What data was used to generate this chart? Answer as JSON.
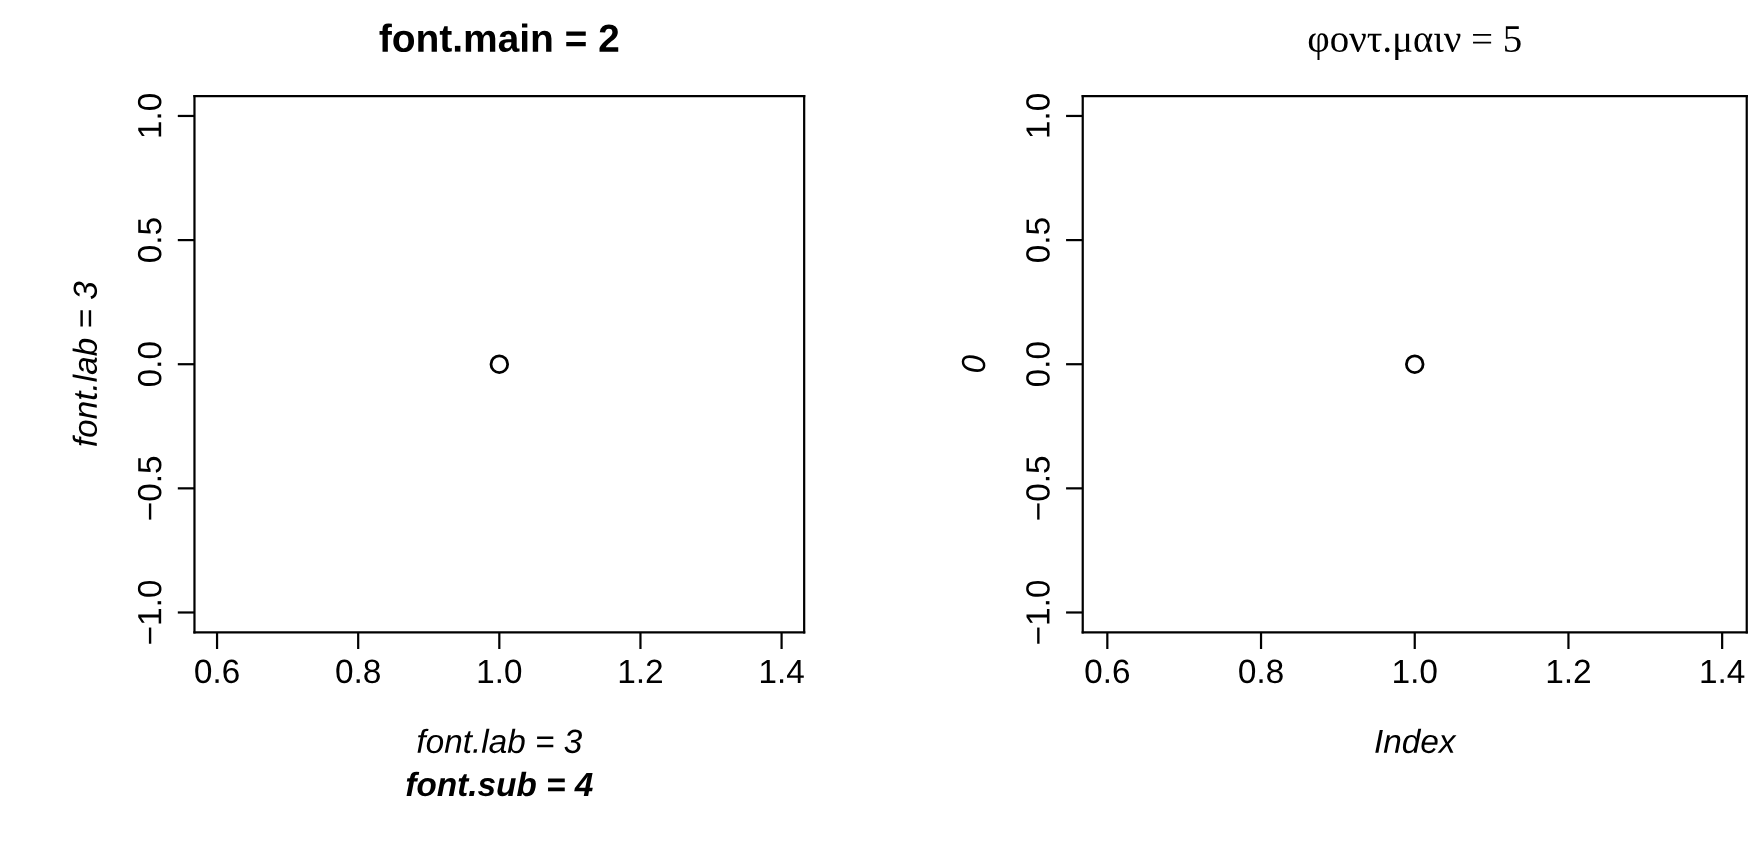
{
  "chart_data": [
    {
      "type": "scatter",
      "title": "font.main = 2",
      "xlabel": "font.lab = 3",
      "subtitle": "font.sub = 4",
      "ylabel": "font.lab = 3",
      "x": [
        1
      ],
      "series": [
        {
          "color": "#000000",
          "values": [
            0
          ]
        }
      ],
      "marker": "circle",
      "xlim": [
        0.568,
        1.432
      ],
      "ylim": [
        -1.08,
        1.08
      ],
      "xticks": [
        {
          "value": 0.6,
          "label": "0.6"
        },
        {
          "value": 0.8,
          "label": "0.8"
        },
        {
          "value": 1,
          "label": "1.0"
        },
        {
          "value": 1.2,
          "label": "1.2"
        },
        {
          "value": 1.4,
          "label": "1.4"
        }
      ],
      "yticks": [
        {
          "value": -1,
          "label": "−1.0"
        },
        {
          "value": -0.5,
          "label": "−0.5"
        },
        {
          "value": 0,
          "label": "0.0"
        },
        {
          "value": 0.5,
          "label": "0.5"
        },
        {
          "value": 1,
          "label": "1.0"
        }
      ],
      "grid": false,
      "legend": false
    },
    {
      "type": "scatter",
      "title": "φοντ.μαιν = 5",
      "xlabel": "Index",
      "ylabel": "0",
      "x": [
        1
      ],
      "series": [
        {
          "color": "#000000",
          "values": [
            0
          ]
        }
      ],
      "marker": "circle",
      "xlim": [
        0.568,
        1.432
      ],
      "ylim": [
        -1.08,
        1.08
      ],
      "xticks": [
        {
          "value": 0.6,
          "label": "0.6"
        },
        {
          "value": 0.8,
          "label": "0.8"
        },
        {
          "value": 1,
          "label": "1.0"
        },
        {
          "value": 1.2,
          "label": "1.2"
        },
        {
          "value": 1.4,
          "label": "1.4"
        }
      ],
      "yticks": [
        {
          "value": -1,
          "label": "−1.0"
        },
        {
          "value": -0.5,
          "label": "−0.5"
        },
        {
          "value": 0,
          "label": "0.0"
        },
        {
          "value": 0.5,
          "label": "0.5"
        },
        {
          "value": 1,
          "label": "1.0"
        }
      ],
      "grid": false,
      "legend": false
    }
  ]
}
